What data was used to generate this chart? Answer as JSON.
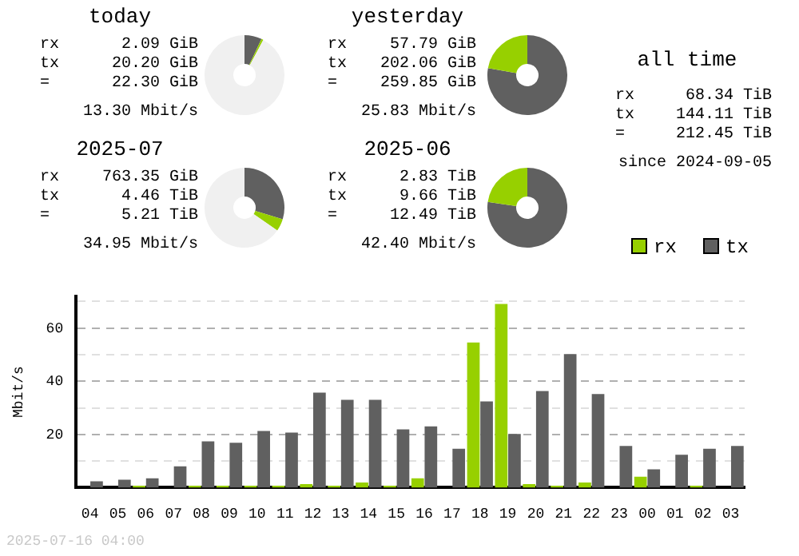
{
  "chart_data": [
    {
      "type": "donut",
      "title": "today",
      "categories": [
        null,
        null,
        null
      ],
      "values": [
        7.0,
        0.8,
        92.2
      ],
      "colors": [
        "#606060",
        "#97d000",
        "#f0f0f0"
      ],
      "annotations": [
        "rx",
        "2.09 GiB",
        "tx",
        "20.20 GiB",
        "=",
        "22.30 GiB",
        "13.30 Mbit/s"
      ]
    },
    {
      "type": "donut",
      "title": "yesterday",
      "categories": [
        null,
        null
      ],
      "values": [
        77.8,
        22.2
      ],
      "colors": [
        "#606060",
        "#97d000"
      ],
      "annotations": [
        "rx",
        "57.79 GiB",
        "tx",
        "202.06 GiB",
        "=",
        "259.85 GiB",
        "25.83 Mbit/s"
      ]
    },
    {
      "type": "other",
      "title": "all time",
      "annotations": [
        "rx",
        "68.34 TiB",
        "tx",
        "144.11 TiB",
        "=",
        "212.45 TiB",
        "since 2024-09-05"
      ]
    },
    {
      "type": "donut",
      "title": "2025-07",
      "categories": [
        null,
        null,
        null
      ],
      "values": [
        29.7,
        5.0,
        65.3
      ],
      "colors": [
        "#606060",
        "#97d000",
        "#f0f0f0"
      ],
      "annotations": [
        "rx",
        "763.35 GiB",
        "tx",
        "4.46 TiB",
        "=",
        "5.21 TiB",
        "34.95 Mbit/s"
      ]
    },
    {
      "type": "donut",
      "title": "2025-06",
      "categories": [
        null,
        null
      ],
      "values": [
        77.3,
        22.7
      ],
      "colors": [
        "#606060",
        "#97d000"
      ],
      "annotations": [
        "rx",
        "2.83 TiB",
        "tx",
        "9.66 TiB",
        "=",
        "12.49 TiB",
        "42.40 Mbit/s"
      ]
    },
    {
      "type": "bar",
      "ylabel": "Mbit/s",
      "categories": [
        "04",
        "05",
        "06",
        "07",
        "08",
        "09",
        "10",
        "11",
        "12",
        "13",
        "14",
        "15",
        "16",
        "17",
        "18",
        "19",
        "20",
        "21",
        "22",
        "23",
        "00",
        "01",
        "02",
        "03"
      ],
      "series": [
        {
          "name": "rx",
          "color": "#97d000",
          "values": [
            0,
            0,
            0.7,
            0,
            0.7,
            0.7,
            0.7,
            0.7,
            1.3,
            0.7,
            1.9,
            0.7,
            3.5,
            0,
            54.6,
            69.1,
            1.3,
            0.7,
            1.9,
            0,
            4.1,
            0,
            0.7,
            0
          ]
        },
        {
          "name": "tx",
          "color": "#606060",
          "values": [
            2.4,
            3.0,
            3.5,
            8.0,
            17.4,
            16.9,
            21.3,
            20.7,
            35.7,
            33.0,
            33.0,
            21.9,
            23.0,
            14.6,
            32.4,
            20.2,
            36.3,
            50.2,
            35.2,
            15.7,
            6.9,
            12.4,
            14.6,
            15.7
          ]
        }
      ],
      "ylim": [
        0,
        72
      ],
      "yticks": [
        {
          "value": 10,
          "label": null
        },
        20,
        {
          "value": 30,
          "label": null
        },
        40,
        {
          "value": 50,
          "label": null
        },
        60,
        {
          "value": 70,
          "label": null
        }
      ],
      "grid": "y",
      "legend": "top right",
      "annotations": [
        "2025-07-16 04:00"
      ]
    }
  ]
}
